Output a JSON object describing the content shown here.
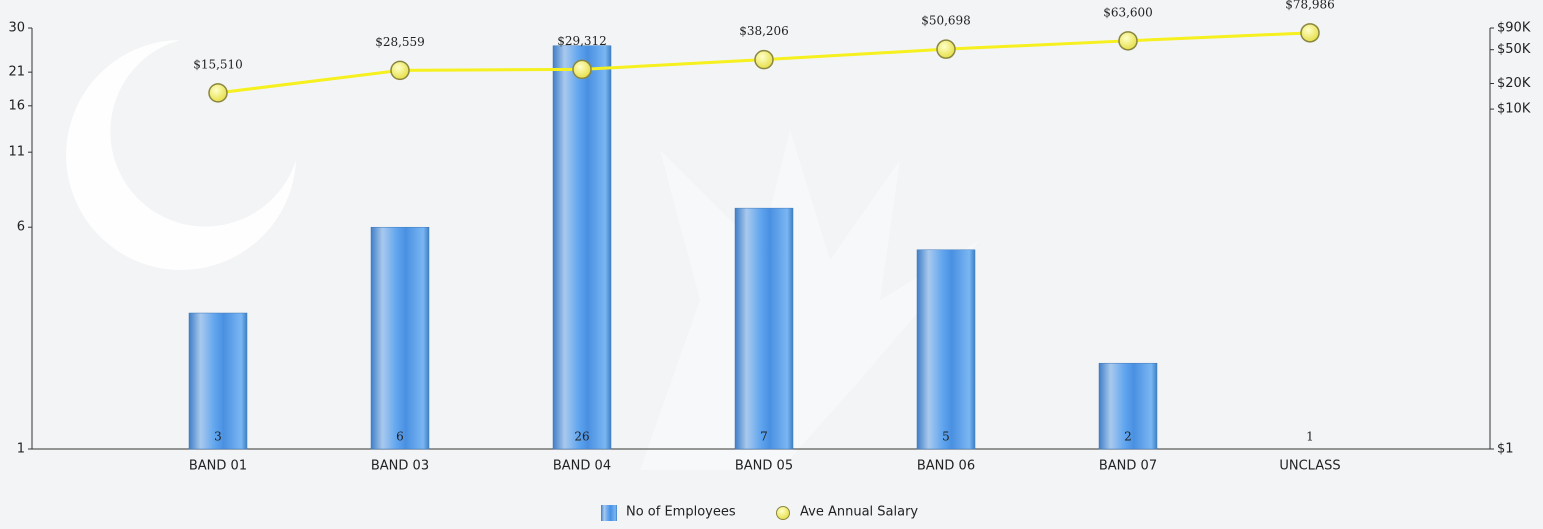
{
  "chart_data": {
    "type": "bar-line",
    "categories": [
      "BAND 01",
      "BAND 03",
      "BAND 04",
      "BAND 05",
      "BAND 06",
      "BAND 07",
      "UNCLASS"
    ],
    "series": [
      {
        "name": "No of Employees",
        "type": "bar",
        "color": "#4a90e2",
        "values": [
          3,
          6,
          26,
          7,
          5,
          2,
          1
        ]
      },
      {
        "name": "Ave Annual Salary",
        "type": "line",
        "axis": "y2",
        "color": "#f5f01e",
        "marker_color": "#f2ee6a",
        "values": [
          15510,
          28559,
          29312,
          38206,
          50698,
          63600,
          78986
        ],
        "value_labels": [
          "$15,510",
          "$28,559",
          "$29,312",
          "$38,206",
          "$50,698",
          "$63,600",
          "$78,986"
        ]
      }
    ],
    "ylim": [
      1,
      30
    ],
    "yticks": [
      1,
      6,
      11,
      16,
      21,
      30
    ],
    "log_scale": true,
    "y2lim": [
      1,
      90000
    ],
    "y2ticks": [
      {
        "value": 1,
        "label": "$1"
      },
      {
        "value": 10000,
        "label": "$10K"
      },
      {
        "value": 20000,
        "label": "$20K"
      },
      {
        "value": 50000,
        "label": "$50K"
      },
      {
        "value": 90000,
        "label": "$90K"
      }
    ],
    "y2_log_scale": true,
    "legend": "bottom"
  }
}
